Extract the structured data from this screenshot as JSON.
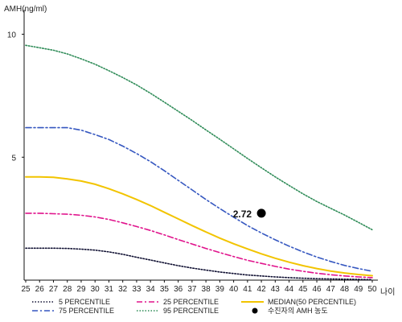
{
  "chart_data": {
    "type": "line",
    "ylabel": "AMH(ng/ml)",
    "xlabel": "나이",
    "xlim": [
      25,
      50
    ],
    "ylim": [
      0,
      11
    ],
    "yticks": [
      5,
      10
    ],
    "x": [
      25,
      26,
      27,
      28,
      29,
      30,
      31,
      32,
      33,
      34,
      35,
      36,
      37,
      38,
      39,
      40,
      41,
      42,
      43,
      44,
      45,
      46,
      47,
      48,
      49,
      50
    ],
    "series": [
      {
        "name": "5 PERCENTILE",
        "color": "#111133",
        "style": "dotted",
        "values": [
          1.3,
          1.3,
          1.3,
          1.29,
          1.26,
          1.22,
          1.15,
          1.05,
          0.93,
          0.82,
          0.7,
          0.59,
          0.49,
          0.41,
          0.33,
          0.27,
          0.21,
          0.17,
          0.13,
          0.1,
          0.08,
          0.06,
          0.05,
          0.04,
          0.03,
          0.02
        ]
      },
      {
        "name": "25 PERCENTILE",
        "color": "#e0138c",
        "style": "dashdot",
        "values": [
          2.72,
          2.72,
          2.7,
          2.68,
          2.64,
          2.57,
          2.47,
          2.33,
          2.18,
          2.02,
          1.84,
          1.65,
          1.47,
          1.29,
          1.12,
          0.96,
          0.81,
          0.68,
          0.56,
          0.45,
          0.36,
          0.28,
          0.22,
          0.17,
          0.13,
          0.1
        ]
      },
      {
        "name": "MEDIAN(50 PERCENTILE)",
        "color": "#f2c400",
        "style": "solid",
        "values": [
          4.2,
          4.2,
          4.18,
          4.12,
          4.03,
          3.9,
          3.72,
          3.51,
          3.28,
          3.03,
          2.76,
          2.49,
          2.22,
          1.96,
          1.71,
          1.48,
          1.27,
          1.07,
          0.89,
          0.73,
          0.59,
          0.47,
          0.37,
          0.29,
          0.23,
          0.18
        ]
      },
      {
        "name": "75 PERCENTILE",
        "color": "#3557c0",
        "style": "dashdot",
        "values": [
          6.2,
          6.2,
          6.2,
          6.2,
          6.1,
          5.92,
          5.72,
          5.45,
          5.15,
          4.82,
          4.45,
          4.06,
          3.67,
          3.28,
          2.91,
          2.56,
          2.22,
          1.92,
          1.64,
          1.38,
          1.15,
          0.94,
          0.76,
          0.6,
          0.47,
          0.36
        ]
      },
      {
        "name": "95 PERCENTILE",
        "color": "#2e8b57",
        "style": "dotted",
        "values": [
          9.55,
          9.45,
          9.35,
          9.2,
          9.0,
          8.78,
          8.52,
          8.24,
          7.94,
          7.6,
          7.24,
          6.87,
          6.5,
          6.11,
          5.73,
          5.34,
          4.95,
          4.57,
          4.2,
          3.85,
          3.51,
          3.2,
          2.92,
          2.65,
          2.35,
          2.05
        ]
      }
    ],
    "highlight": {
      "x": 42,
      "y": 2.72,
      "label": "2.72",
      "legend": "수진자의 AMH 농도",
      "color": "#000000"
    },
    "legend_order": [
      "5 PERCENTILE",
      "25 PERCENTILE",
      "MEDIAN(50 PERCENTILE)",
      "75 PERCENTILE",
      "95 PERCENTILE",
      "수진자의 AMH 농도"
    ],
    "legend_placement": "bottom",
    "grid": false
  }
}
